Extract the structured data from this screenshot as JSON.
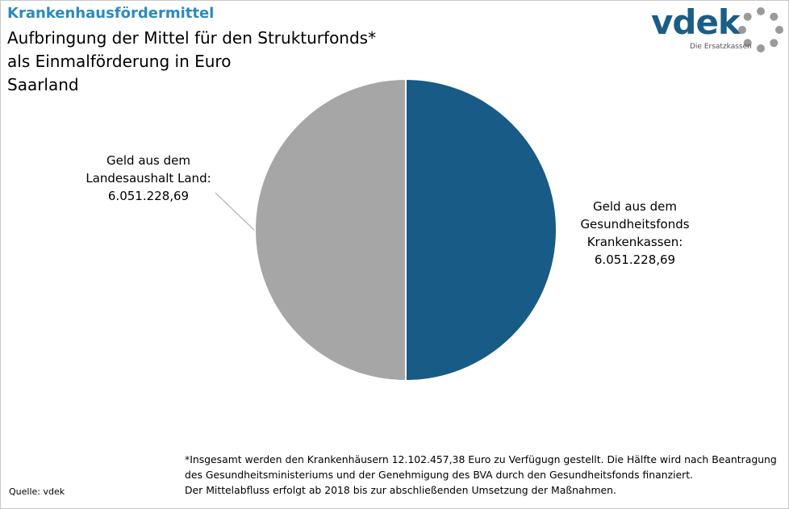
{
  "header": {
    "kicker": "Krankenhausfördermittel",
    "title_lines": [
      "Aufbringung der Mittel für den Strukturfonds*",
      "als Einmalförderung in Euro",
      "Saarland"
    ]
  },
  "logo": {
    "wordmark": "vdek",
    "tagline": "Die Ersatzkassen",
    "icon": "ring-of-dots-icon"
  },
  "colors": {
    "accent": "#2a8bbd",
    "slice_blue": "#175b86",
    "slice_gray": "#a6a6a6"
  },
  "chart_data": {
    "type": "pie",
    "series": [
      {
        "label_lines": [
          "Geld aus dem",
          "Gesundheitsfonds",
          "Krankenkassen:",
          "6.051.228,69"
        ],
        "value": 6051228.69,
        "color": "#175b86"
      },
      {
        "label_lines": [
          "Geld aus dem",
          "Landesaushalt Land:",
          "6.051.228,69"
        ],
        "value": 6051228.69,
        "color": "#a6a6a6"
      }
    ]
  },
  "footnote_lines": [
    "*Insgesamt werden den Krankenhäusern 12.102.457,38  Euro zu Verfügugn gestellt. Die Hälfte wird nach Beantragung",
    " des Gesundheitsministeriums  und der Genehmigung des BVA durch den Gesundheitsfonds finanziert.",
    " Der Mittelabfluss erfolgt ab 2018 bis zur abschließenden Umsetzung der Maßnahmen."
  ],
  "source": "Quelle: vdek"
}
